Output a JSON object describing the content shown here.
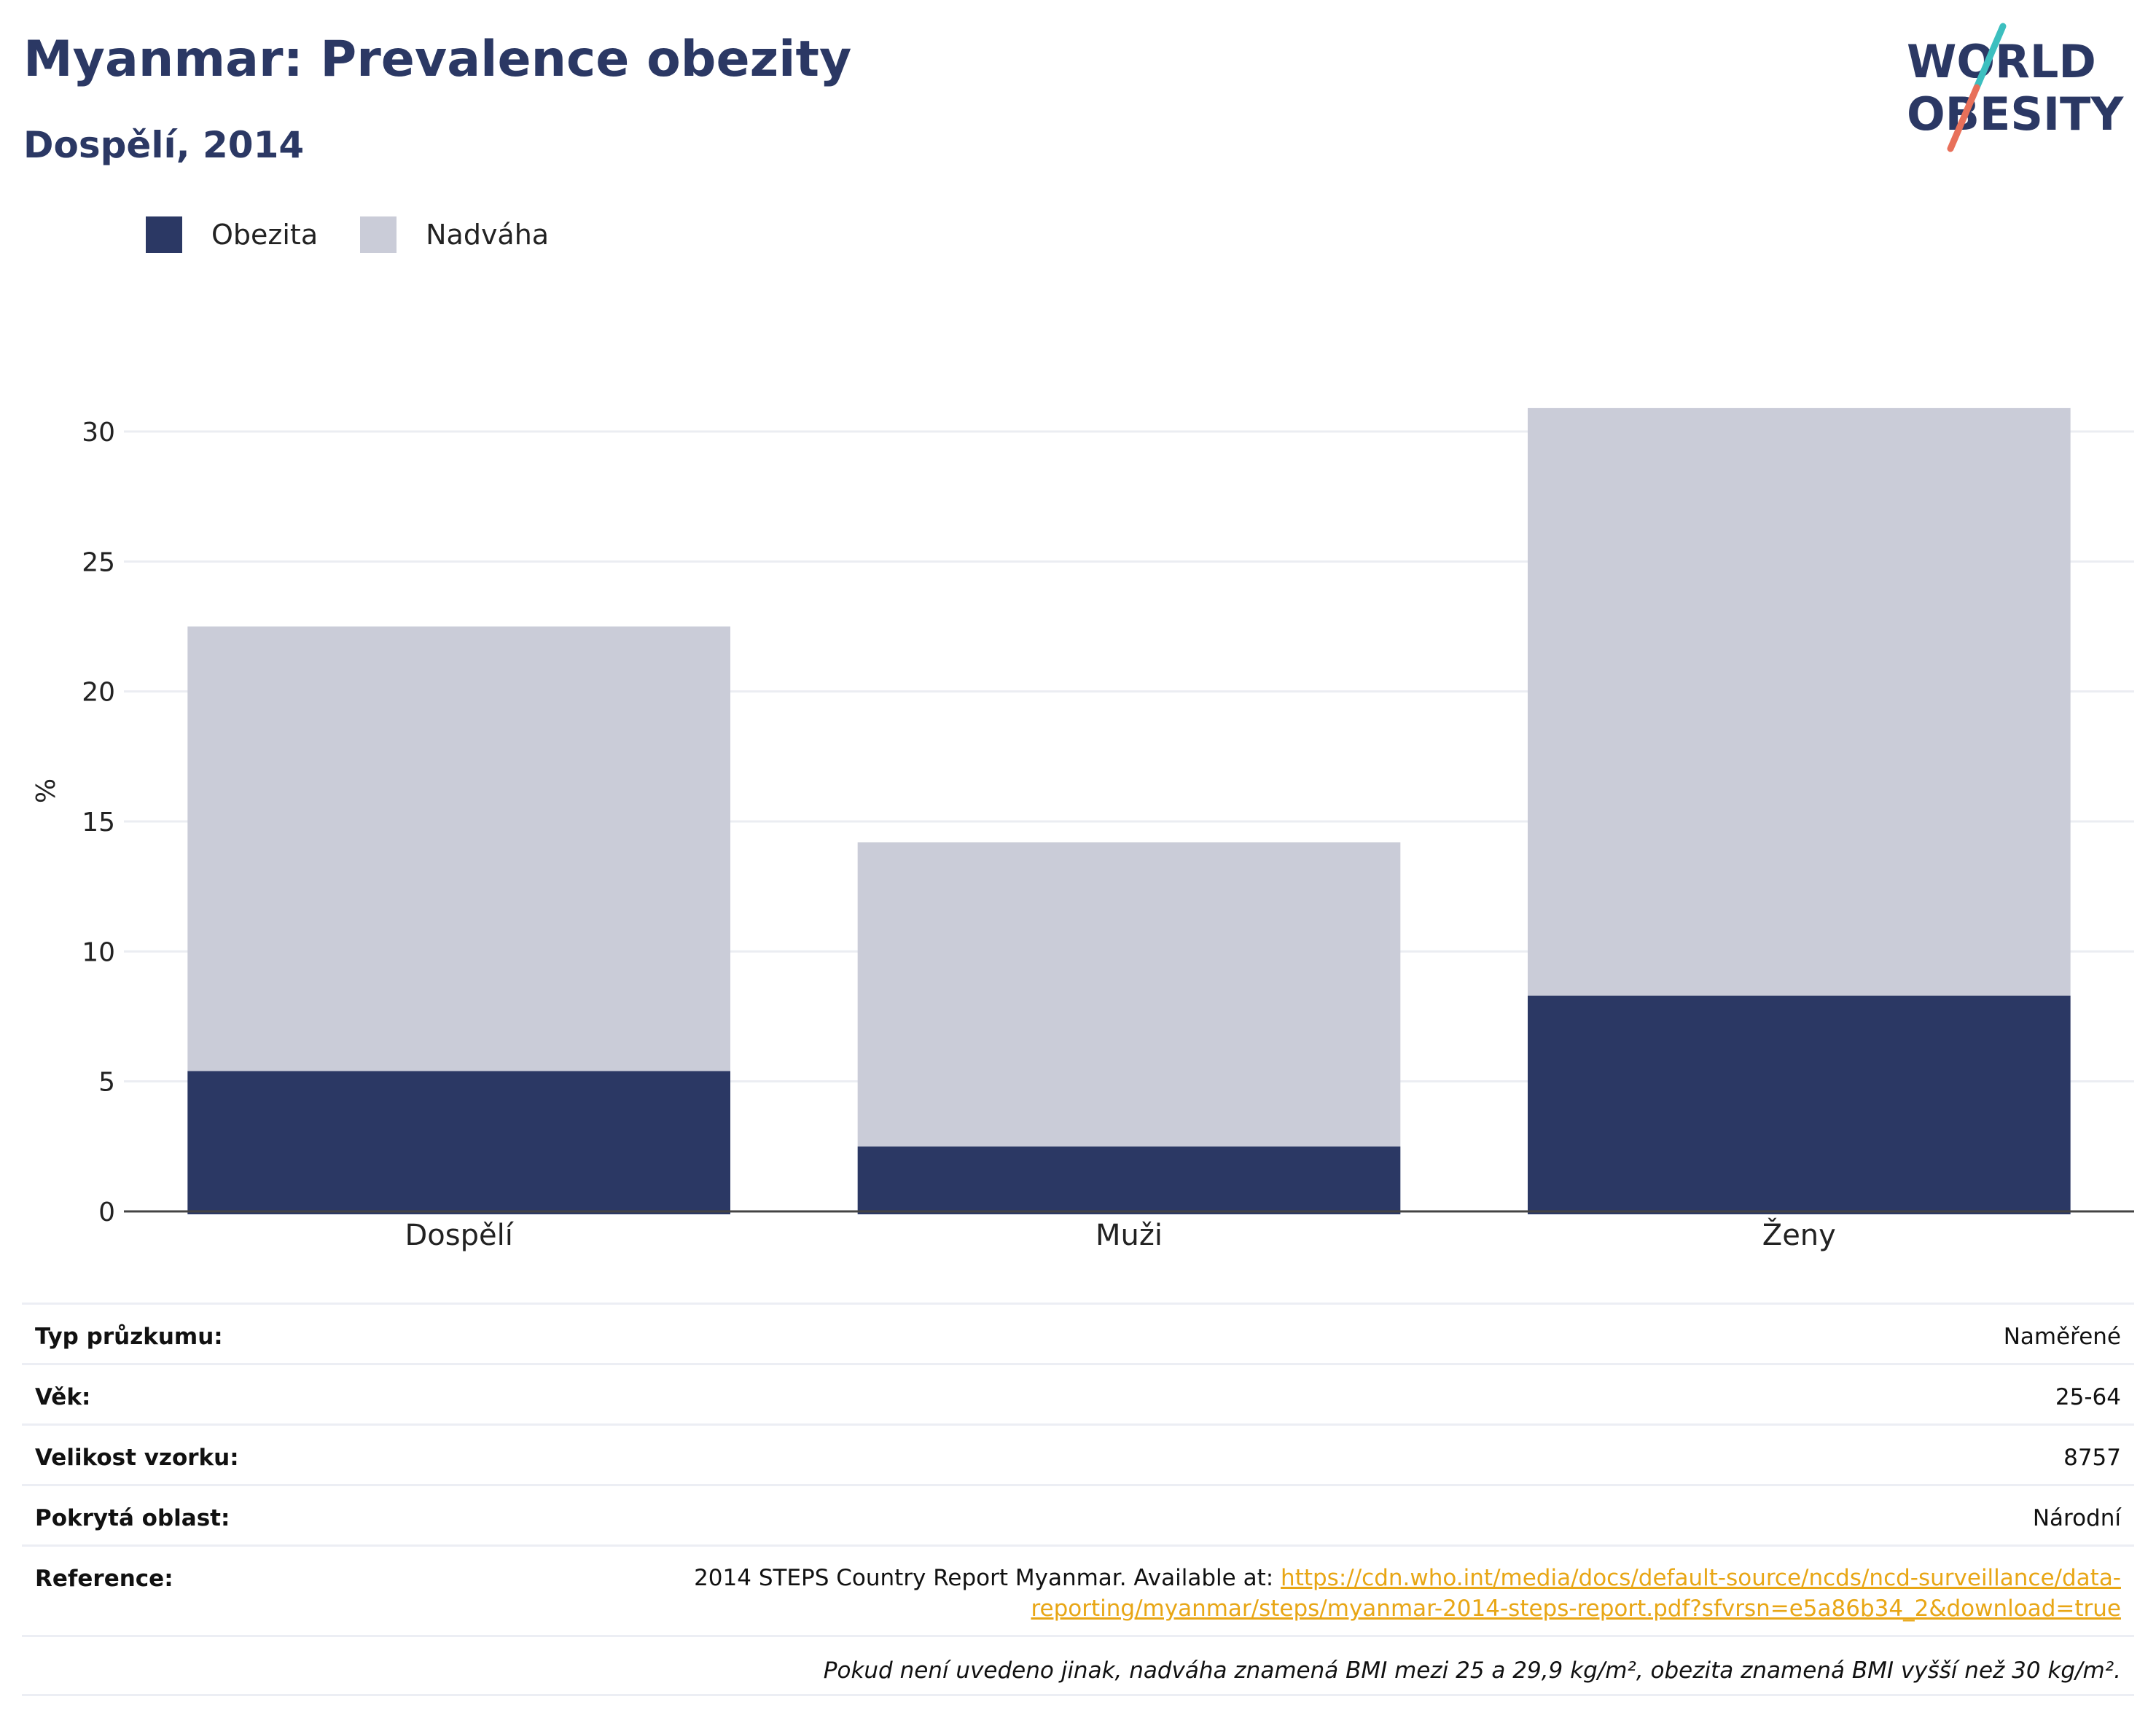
{
  "header": {
    "title": "Myanmar: Prevalence obezity",
    "subtitle": "Dospělí, 2014"
  },
  "logo": {
    "line1": "WORLD",
    "line2": "OBESITY"
  },
  "colors": {
    "obesity": "#2b3864",
    "overweight": "#caccd8",
    "accent_teal": "#3cbfbf",
    "accent_coral": "#e8705a",
    "link": "#e8a615"
  },
  "chart_data": {
    "type": "bar",
    "stacked": true,
    "categories": [
      "Dospělí",
      "Muži",
      "Ženy"
    ],
    "series": [
      {
        "name": "Obezita",
        "values": [
          5.4,
          2.5,
          8.3
        ]
      },
      {
        "name": "Nadváha",
        "values": [
          17.1,
          11.7,
          22.6
        ]
      }
    ],
    "title": "Myanmar: Prevalence obezity",
    "subtitle": "Dospělí, 2014",
    "xlabel": "",
    "ylabel": "%",
    "ylim": [
      0,
      30
    ],
    "yticks": [
      0,
      5,
      10,
      15,
      20,
      25,
      30
    ],
    "grid": true,
    "legend_position": "top-left"
  },
  "info": {
    "rows": [
      {
        "label": "Typ průzkumu:",
        "value": "Naměřené"
      },
      {
        "label": "Věk:",
        "value": "25-64"
      },
      {
        "label": "Velikost vzorku:",
        "value": "8757"
      },
      {
        "label": "Pokrytá oblast:",
        "value": "Národní"
      }
    ],
    "reference": {
      "label": "Reference:",
      "text": "2014 STEPS Country Report Myanmar. Available at: ",
      "link": "https://cdn.who.int/media/docs/default-source/ncds/ncd-surveillance/data-reporting/myanmar/steps/myanmar-2014-steps-report.pdf?sfvrsn=e5a86b34_2&download=true"
    },
    "note": "Pokud není uvedeno jinak, nadváha znamená BMI mezi 25 a 29,9 kg/m², obezita znamená BMI vyšší než 30 kg/m²."
  }
}
